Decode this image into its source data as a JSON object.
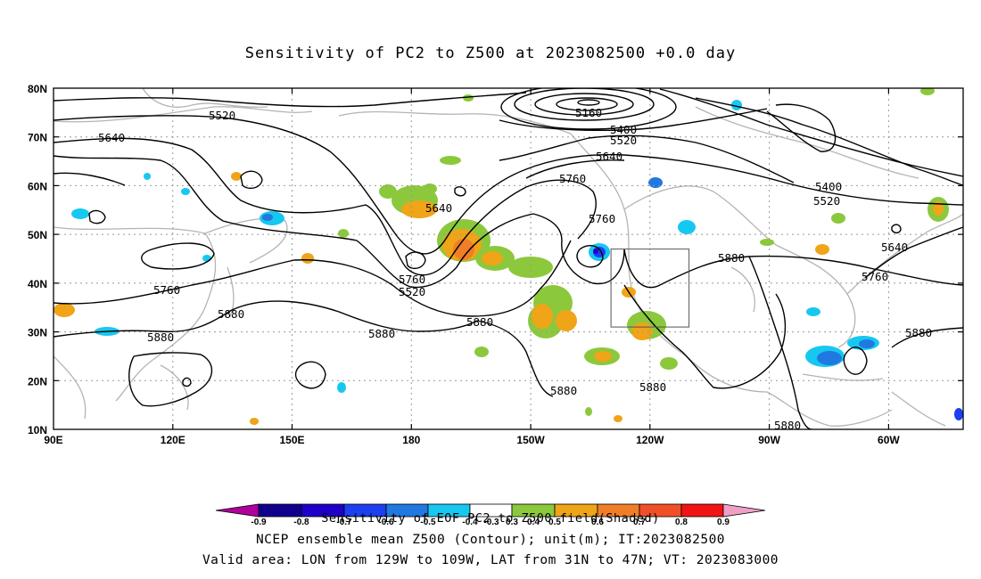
{
  "title": "Sensitivity of PC2 to Z500 at 2023082500 +0.0 day",
  "map": {
    "lat_labels": [
      "80N",
      "70N",
      "60N",
      "50N",
      "40N",
      "30N",
      "20N",
      "10N"
    ],
    "lon_labels": [
      "90E",
      "120E",
      "150E",
      "180",
      "150W",
      "120W",
      "90W",
      "60W"
    ],
    "contour_labels": [
      {
        "text": "5160"
      },
      {
        "text": "5400"
      },
      {
        "text": "5520"
      },
      {
        "text": "5640"
      },
      {
        "text": "5520"
      },
      {
        "text": "5640"
      },
      {
        "text": "5760"
      },
      {
        "text": "5760"
      },
      {
        "text": "5400"
      },
      {
        "text": "5520"
      },
      {
        "text": "5640"
      },
      {
        "text": "5760"
      },
      {
        "text": "5520"
      },
      {
        "text": "5640"
      },
      {
        "text": "5760"
      },
      {
        "text": "5880"
      },
      {
        "text": "5760"
      },
      {
        "text": "5880"
      },
      {
        "text": "5880"
      },
      {
        "text": "5880"
      },
      {
        "text": "5880"
      },
      {
        "text": "5880"
      },
      {
        "text": "5880"
      },
      {
        "text": "5880"
      },
      {
        "text": "5880"
      }
    ],
    "valid_box": {
      "lon_west": "129W",
      "lon_east": "109W",
      "lat_south": "31N",
      "lat_north": "47N"
    }
  },
  "colorbar": {
    "labels": [
      "-0.9",
      "-0.8",
      "-0.7",
      "-0.6",
      "-0.5",
      "-0.4",
      "-0.3",
      "0.3",
      "0.4",
      "0.5",
      "0.6",
      "0.7",
      "0.8",
      "0.9"
    ],
    "colors": [
      "#b0009a",
      "#10008c",
      "#1e00c8",
      "#1c40f0",
      "#2078e0",
      "#18a8e8",
      "#16c8f0",
      "#ffffff",
      "#8cc83c",
      "#f0a418",
      "#f07e28",
      "#f05028",
      "#f01414",
      "#f0a0c8"
    ]
  },
  "captions": {
    "line1": "Sensitivity of EOF PC2 to Z500 field(Shaded)",
    "line2": "NCEP ensemble mean Z500 (Contour); unit(m); IT:2023082500",
    "line3": "Valid area: LON from 129W to 109W, LAT from 31N to 47N; VT: 2023083000"
  }
}
